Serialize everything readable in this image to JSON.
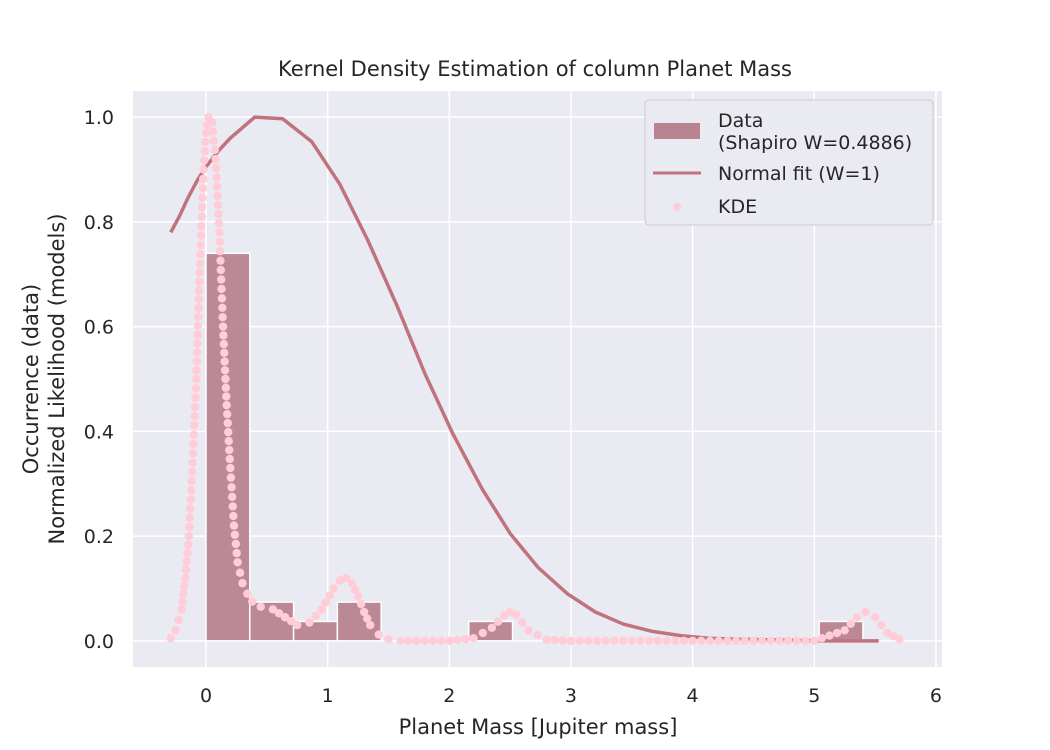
{
  "chart_data": {
    "type": "bar",
    "title": "Kernel Density Estimation of column Planet Mass",
    "xlabel": "Planet Mass [Jupiter mass]",
    "ylabel_lines": [
      "Occurrence (data)",
      "Normalized Likelihood (models)"
    ],
    "xlim": [
      -0.6,
      6.05
    ],
    "ylim": [
      -0.05,
      1.05
    ],
    "xticks": [
      0,
      1,
      2,
      3,
      4,
      5,
      6
    ],
    "yticks": [
      0.0,
      0.2,
      0.4,
      0.6,
      0.8,
      1.0
    ],
    "ytick_labels": [
      "0.0",
      "0.2",
      "0.4",
      "0.6",
      "0.8",
      "1.0"
    ],
    "grid": true,
    "legend_position": "top-right",
    "colors": {
      "background": "#eaeaf2",
      "grid": "#ffffff",
      "bar": "#b7848f",
      "normal_fit": "#c0737e",
      "kde": "#ffccd8"
    },
    "series": [
      {
        "name": "Data\n(Shapiro W=0.4886)",
        "legend_lines": [
          "Data",
          "(Shapiro W=0.4886)"
        ],
        "kind": "histogram",
        "bin_edges": [
          0.0,
          0.36,
          0.72,
          1.08,
          1.44,
          1.8,
          2.16,
          2.52,
          2.88,
          3.24,
          3.6,
          3.96,
          4.32,
          4.68,
          5.04,
          5.4
        ],
        "values": [
          0.74,
          0.074,
          0.037,
          0.074,
          0.0,
          0.0,
          0.037,
          0.0,
          0.0,
          0.0,
          0.0,
          0.0,
          0.0,
          0.0,
          0.037
        ]
      },
      {
        "name": "Normal fit (W=1)",
        "kind": "line",
        "x": [
          -0.29,
          -0.22,
          -0.15,
          -0.07,
          0.0,
          0.1,
          0.2,
          0.4,
          0.63,
          0.87,
          1.1,
          1.33,
          1.57,
          1.8,
          2.03,
          2.27,
          2.5,
          2.73,
          2.97,
          3.2,
          3.43,
          3.67,
          3.9,
          4.13,
          4.37,
          4.6,
          4.83,
          5.07,
          5.3,
          5.53
        ],
        "y": [
          0.78,
          0.81,
          0.845,
          0.88,
          0.905,
          0.935,
          0.96,
          1.0,
          0.997,
          0.953,
          0.872,
          0.765,
          0.64,
          0.51,
          0.395,
          0.29,
          0.205,
          0.14,
          0.09,
          0.055,
          0.032,
          0.018,
          0.01,
          0.005,
          0.003,
          0.002,
          0.001,
          0.0,
          0.0,
          0.0
        ]
      },
      {
        "name": "KDE",
        "kind": "scatter",
        "x": [
          -0.29,
          -0.25,
          -0.2,
          -0.17,
          -0.14,
          -0.11,
          -0.08,
          -0.05,
          -0.02,
          0.0,
          0.02,
          0.05,
          0.08,
          0.11,
          0.14,
          0.17,
          0.2,
          0.23,
          0.26,
          0.3,
          0.34,
          0.38,
          0.45,
          0.55,
          0.65,
          0.75,
          0.85,
          0.95,
          1.05,
          1.1,
          1.15,
          1.2,
          1.25,
          1.3,
          1.35,
          1.42,
          1.5,
          1.6,
          1.8,
          2.0,
          2.2,
          2.35,
          2.45,
          2.5,
          2.55,
          2.65,
          2.8,
          3.0,
          3.5,
          4.0,
          4.5,
          5.0,
          5.25,
          5.35,
          5.42,
          5.5,
          5.6,
          5.7
        ],
        "y": [
          0.005,
          0.02,
          0.06,
          0.12,
          0.2,
          0.34,
          0.5,
          0.72,
          0.9,
          0.97,
          1.0,
          0.99,
          0.92,
          0.78,
          0.6,
          0.45,
          0.33,
          0.22,
          0.15,
          0.11,
          0.09,
          0.075,
          0.065,
          0.06,
          0.045,
          0.03,
          0.035,
          0.06,
          0.1,
          0.115,
          0.12,
          0.11,
          0.085,
          0.055,
          0.03,
          0.012,
          0.003,
          0.0,
          0.0,
          0.0,
          0.005,
          0.025,
          0.048,
          0.055,
          0.05,
          0.02,
          0.002,
          0.0,
          0.0,
          0.0,
          0.0,
          0.0,
          0.02,
          0.045,
          0.055,
          0.045,
          0.015,
          0.003
        ]
      }
    ]
  }
}
